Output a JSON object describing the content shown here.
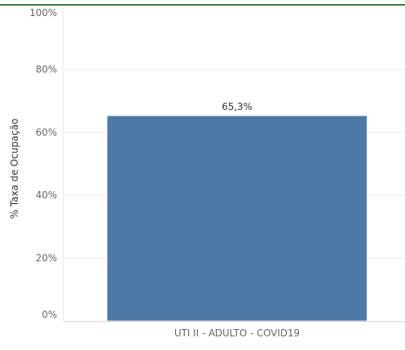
{
  "chart_data": {
    "type": "bar",
    "title": "",
    "xlabel": "",
    "ylabel": "% Taxa de Ocupação",
    "categories": [
      "UTI II - ADULTO - COVID19"
    ],
    "values": [
      65.3
    ],
    "data_labels": [
      "65,3%"
    ],
    "ylim": [
      0,
      100
    ],
    "yticks": [
      0,
      20,
      40,
      60,
      80,
      100
    ],
    "ytick_labels": [
      "0%",
      "20%",
      "40%",
      "60%",
      "80%",
      "100%"
    ],
    "grid": true,
    "legend": "none"
  },
  "colors": {
    "bar": "#4e79a7",
    "top_rule": "#3a7a3a",
    "gridline": "#ececec",
    "tick_text": "#666666",
    "axis_title": "#333333",
    "data_label": "#333333"
  }
}
